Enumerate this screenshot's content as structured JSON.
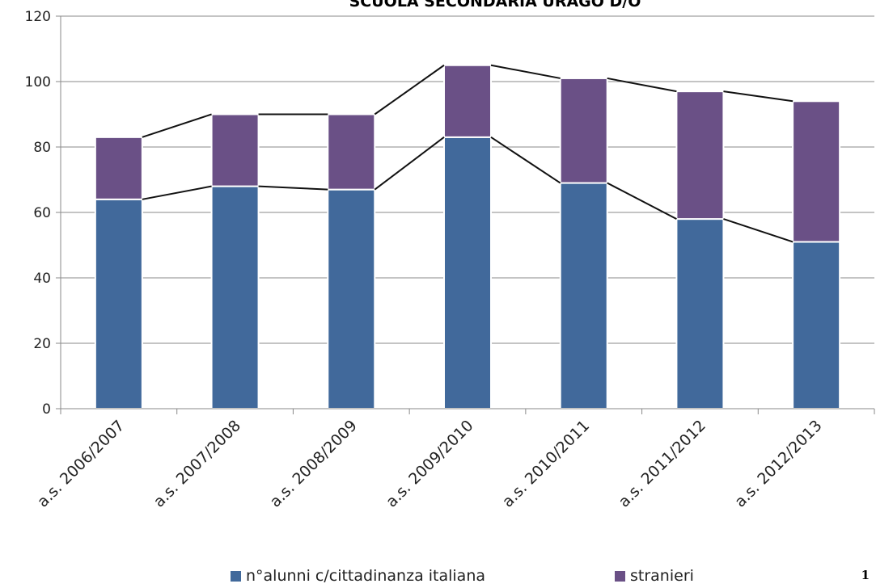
{
  "chart_data": {
    "type": "bar",
    "stacked": true,
    "title": "SCUOLA SECONDARIA  URAGO D/O",
    "categories": [
      "a.s. 2006/2007",
      "a.s. 2007/2008",
      "a.s. 2008/2009",
      "a.s. 2009/2010",
      "a.s. 2010/2011",
      "a.s. 2011/2012",
      "a.s. 2012/2013"
    ],
    "series": [
      {
        "name": "n°alunni c/cittadinanza italiana",
        "color": "#41699b",
        "values": [
          64,
          68,
          67,
          83,
          69,
          58,
          51
        ]
      },
      {
        "name": "stranieri",
        "color": "#6a5086",
        "values": [
          19,
          22,
          23,
          22,
          32,
          39,
          43
        ]
      }
    ],
    "ylim": [
      0,
      120
    ],
    "yticks": [
      0,
      20,
      40,
      60,
      80,
      100,
      120
    ],
    "grid": true,
    "series_lines": true,
    "legend_position": "bottom"
  },
  "page_number": "1"
}
